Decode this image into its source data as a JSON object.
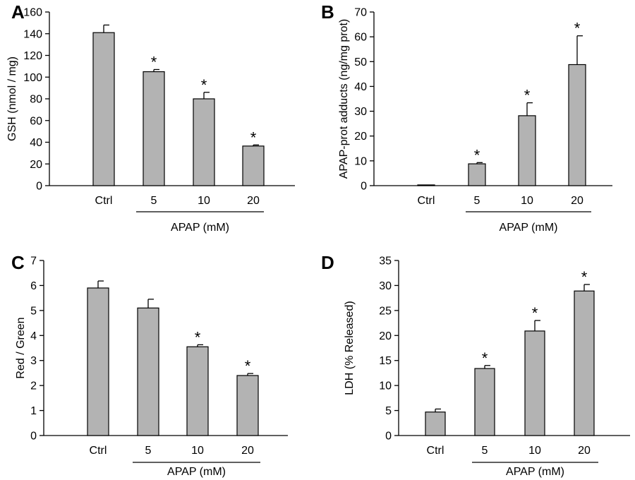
{
  "colors": {
    "bar": "#b3b3b3",
    "stroke": "#000000"
  },
  "chart_data": [
    {
      "type": "bar",
      "panel": "A",
      "ylabel": "GSH (nmol / mg)",
      "group_label": "APAP (mM)",
      "categories": [
        "Ctrl",
        "5",
        "10",
        "20"
      ],
      "values": [
        141,
        105,
        80,
        36.5
      ],
      "errors": [
        7,
        2,
        6,
        1
      ],
      "significant": [
        false,
        true,
        true,
        true
      ],
      "significance_marker": "*",
      "ylim": [
        0,
        160
      ],
      "yticks": [
        0,
        20,
        40,
        60,
        80,
        100,
        120,
        140,
        160
      ]
    },
    {
      "type": "bar",
      "panel": "B",
      "ylabel": "APAP-prot adducts (ng/mg prot)",
      "group_label": "APAP (mM)",
      "categories": [
        "Ctrl",
        "5",
        "10",
        "20"
      ],
      "values": [
        0.3,
        8.8,
        28.2,
        48.8
      ],
      "errors": [
        0,
        0.5,
        5.2,
        11.6
      ],
      "significant": [
        false,
        true,
        true,
        true
      ],
      "significance_marker": "*",
      "ylim": [
        0,
        70
      ],
      "yticks": [
        0,
        10,
        20,
        30,
        40,
        50,
        60,
        70
      ]
    },
    {
      "type": "bar",
      "panel": "C",
      "ylabel": "Red / Green",
      "group_label": "APAP (mM)",
      "categories": [
        "Ctrl",
        "5",
        "10",
        "20"
      ],
      "values": [
        5.9,
        5.1,
        3.55,
        2.4
      ],
      "errors": [
        0.28,
        0.35,
        0.08,
        0.08
      ],
      "significant": [
        false,
        false,
        true,
        true
      ],
      "significance_marker": "*",
      "ylim": [
        0,
        7
      ],
      "yticks": [
        0,
        1,
        2,
        3,
        4,
        5,
        6,
        7
      ]
    },
    {
      "type": "bar",
      "panel": "D",
      "ylabel": "LDH (% Released)",
      "group_label": "APAP (mM)",
      "categories": [
        "Ctrl",
        "5",
        "10",
        "20"
      ],
      "values": [
        4.7,
        13.4,
        20.9,
        28.9
      ],
      "errors": [
        0.6,
        0.6,
        2.1,
        1.3
      ],
      "significant": [
        false,
        true,
        true,
        true
      ],
      "significance_marker": "*",
      "ylim": [
        0,
        35
      ],
      "yticks": [
        0,
        5,
        10,
        15,
        20,
        25,
        30,
        35
      ]
    }
  ]
}
